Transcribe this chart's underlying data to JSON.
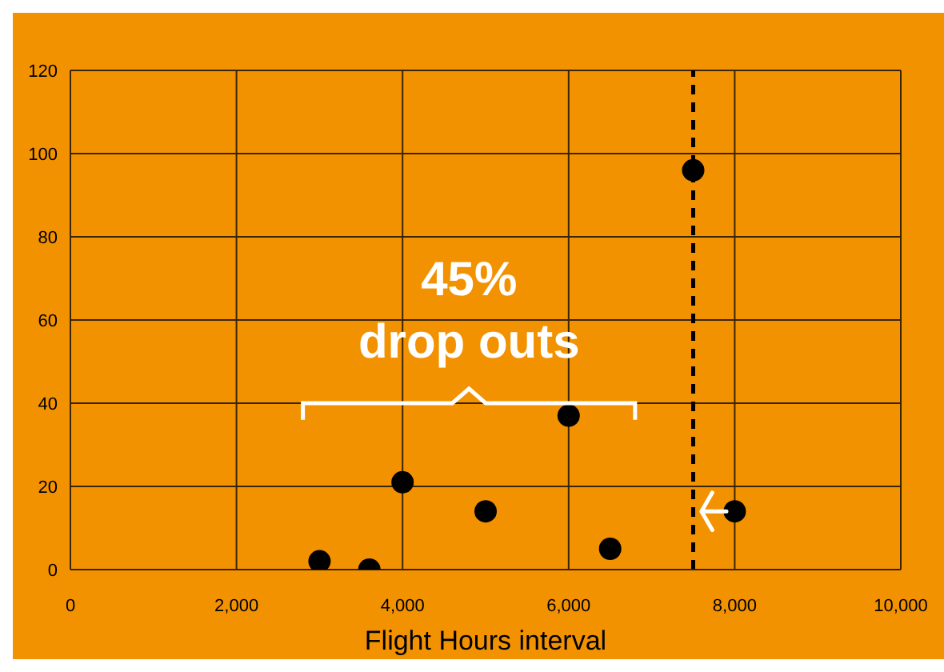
{
  "chart_data": {
    "type": "scatter",
    "xlabel": "Flight Hours interval",
    "x": [
      3000,
      3600,
      4000,
      5000,
      6000,
      6500,
      7500,
      8000
    ],
    "values": [
      2,
      0,
      21,
      14,
      37,
      5,
      96,
      14
    ],
    "color": "#000000",
    "xlim": [
      0,
      10000
    ],
    "xticks": [
      {
        "value": 0,
        "label": "0"
      },
      {
        "value": 2000,
        "label": "2,000"
      },
      {
        "value": 4000,
        "label": "4,000"
      },
      {
        "value": 6000,
        "label": "6,000"
      },
      {
        "value": 8000,
        "label": "8,000"
      },
      {
        "value": 10000,
        "label": "10,000"
      }
    ],
    "ylim": [
      0,
      120
    ],
    "yticks": [
      0,
      20,
      40,
      60,
      80,
      100,
      120
    ],
    "grid": true,
    "marker": "circle",
    "ref_lines": [
      {
        "axis": "x",
        "value": 7500,
        "color": "#000000",
        "line_style": "dashed"
      }
    ],
    "annotations": [
      "45%",
      "drop outs"
    ]
  }
}
